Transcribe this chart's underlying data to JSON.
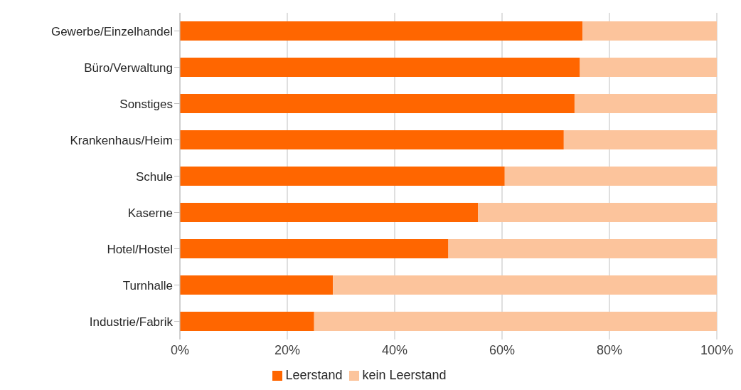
{
  "chart_data": {
    "type": "bar",
    "orientation": "horizontal",
    "stacked": true,
    "categories": [
      "Gewerbe/Einzelhandel",
      "Büro/Verwaltung",
      "Sonstiges",
      "Krankenhaus/Heim",
      "Schule",
      "Kaserne",
      "Hotel/Hostel",
      "Turnhalle",
      "Industrie/Fabrik"
    ],
    "series": [
      {
        "name": "Leerstand",
        "color": "#ff6600",
        "values": [
          75,
          74.5,
          73.5,
          71.5,
          60.5,
          55.5,
          50,
          28.5,
          25
        ]
      },
      {
        "name": "kein Leerstand",
        "color": "#fcc49c",
        "values": [
          25,
          25.5,
          26.5,
          28.5,
          39.5,
          44.5,
          50,
          71.5,
          75
        ]
      }
    ],
    "xlim": [
      0,
      100
    ],
    "xticks": [
      {
        "value": 0,
        "label": "0%"
      },
      {
        "value": 20,
        "label": "20%"
      },
      {
        "value": 40,
        "label": "40%"
      },
      {
        "value": 60,
        "label": "60%"
      },
      {
        "value": 80,
        "label": "80%"
      },
      {
        "value": 100,
        "label": "100%"
      }
    ],
    "grid": "x",
    "legend": "bottom"
  }
}
